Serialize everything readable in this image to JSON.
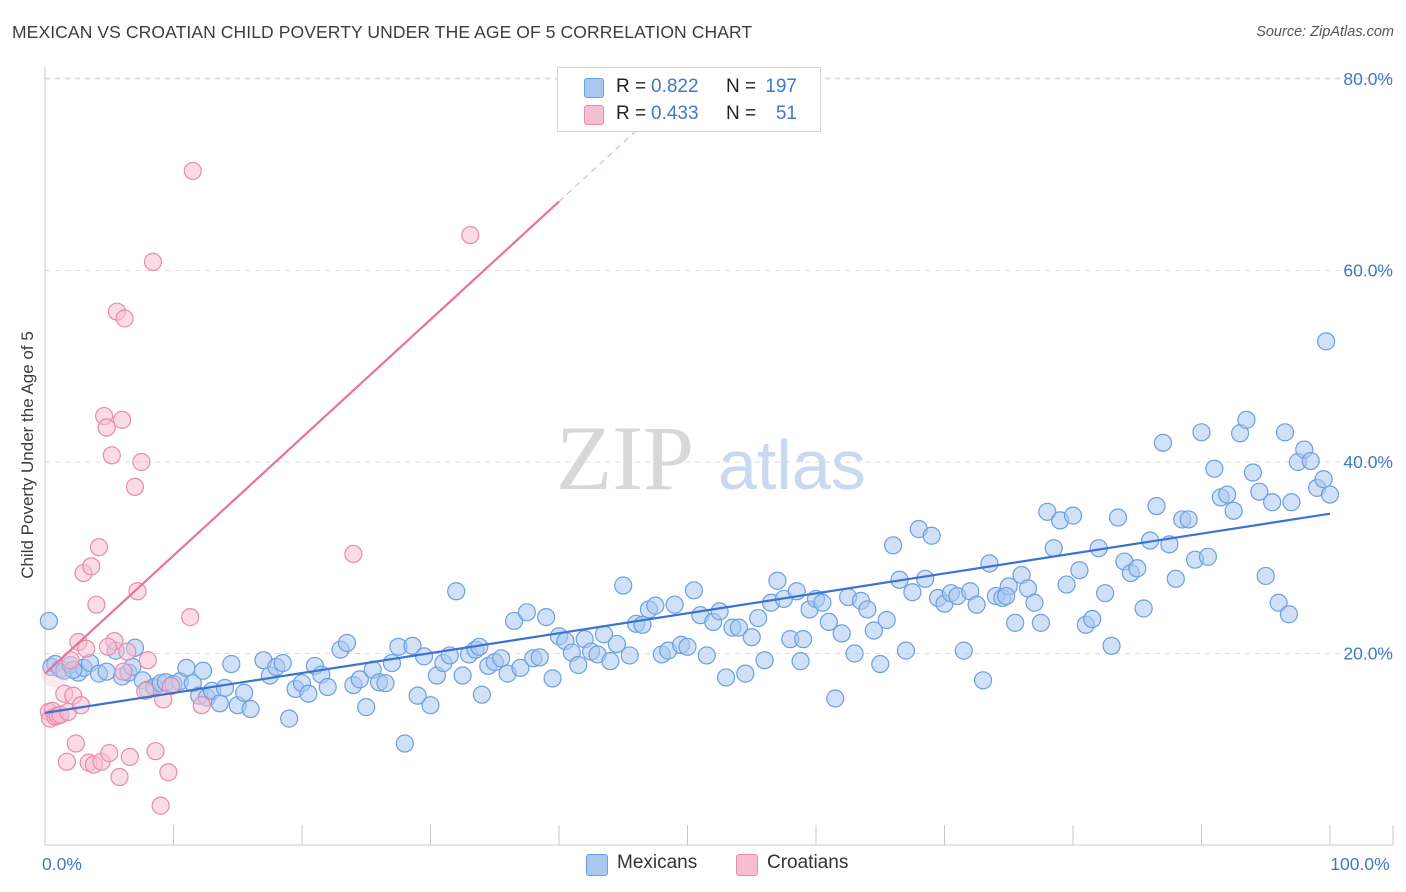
{
  "title": "MEXICAN VS CROATIAN CHILD POVERTY UNDER THE AGE OF 5 CORRELATION CHART",
  "source": "Source: ZipAtlas.com",
  "watermark": {
    "zip": "ZIP",
    "atlas": "atlas"
  },
  "colors": {
    "blue_fill": "#a9c8f0",
    "blue_stroke": "#6b9fe0",
    "blue_line": "#3a73d0",
    "pink_fill": "#f6bfd1",
    "pink_stroke": "#ea8aab",
    "pink_line": "#e8739a",
    "grid": "#dcdcdc",
    "axis": "#c8c8c8",
    "tick_text": "#3f79c9"
  },
  "legend": {
    "rows": [
      {
        "r_label": "R =",
        "r_value": "0.822",
        "n_label": "N =",
        "n_value": "197",
        "color": "#a9c8f0",
        "stroke": "#6b9fe0"
      },
      {
        "r_label": "R =",
        "r_value": "0.433",
        "n_label": "N =",
        "n_value": "51",
        "color": "#f6bfd1",
        "stroke": "#ea8aab"
      }
    ]
  },
  "bottom_legend": [
    {
      "label": "Mexicans",
      "color": "#a9c8f0",
      "stroke": "#6b9fe0"
    },
    {
      "label": "Croatians",
      "color": "#f6bfd1",
      "stroke": "#ea8aab"
    }
  ],
  "chart_data": {
    "type": "scatter",
    "title": "MEXICAN VS CROATIAN CHILD POVERTY UNDER THE AGE OF 5 CORRELATION CHART",
    "xlabel": "",
    "ylabel": "Child Poverty Under the Age of 5",
    "xlim": [
      0,
      100
    ],
    "ylim": [
      0,
      80
    ],
    "x_tick_labels": [
      {
        "value": 0,
        "label": "0.0%"
      },
      {
        "value": 100,
        "label": "100.0%"
      }
    ],
    "y_tick_labels": [
      {
        "value": 20,
        "label": "20.0%"
      },
      {
        "value": 40,
        "label": "40.0%"
      },
      {
        "value": 60,
        "label": "60.0%"
      },
      {
        "value": 80,
        "label": "80.0%"
      }
    ],
    "series": [
      {
        "name": "Mexicans",
        "trend": {
          "x": [
            0,
            100
          ],
          "y": [
            13.8,
            34.6
          ]
        },
        "points": [
          [
            0.3,
            23.4
          ],
          [
            0.5,
            18.6
          ],
          [
            0.8,
            18.9
          ],
          [
            1.2,
            18.4
          ],
          [
            1.5,
            18.2
          ],
          [
            2.0,
            18.8
          ],
          [
            2.6,
            18.0
          ],
          [
            3.0,
            18.5
          ],
          [
            3.5,
            19.0
          ],
          [
            4.2,
            17.9
          ],
          [
            4.8,
            18.1
          ],
          [
            5.5,
            20.3
          ],
          [
            6.0,
            17.6
          ],
          [
            6.5,
            18.0
          ],
          [
            7.0,
            20.6
          ],
          [
            7.6,
            17.2
          ],
          [
            8.0,
            16.2
          ],
          [
            8.5,
            16.5
          ],
          [
            9.0,
            16.9
          ],
          [
            9.4,
            17.0
          ],
          [
            10.0,
            16.8
          ],
          [
            10.5,
            17.1
          ],
          [
            11.0,
            18.5
          ],
          [
            11.5,
            16.9
          ],
          [
            12.0,
            15.6
          ],
          [
            12.6,
            15.4
          ],
          [
            13.0,
            16.1
          ],
          [
            13.6,
            14.8
          ],
          [
            14.0,
            16.4
          ],
          [
            14.5,
            18.9
          ],
          [
            15.0,
            14.6
          ],
          [
            15.5,
            15.9
          ],
          [
            16.0,
            14.2
          ],
          [
            17.0,
            19.3
          ],
          [
            17.5,
            17.7
          ],
          [
            18.0,
            18.6
          ],
          [
            18.5,
            19.0
          ],
          [
            19.0,
            13.2
          ],
          [
            19.5,
            16.3
          ],
          [
            20.0,
            16.9
          ],
          [
            20.5,
            15.8
          ],
          [
            21.0,
            18.7
          ],
          [
            21.5,
            17.8
          ],
          [
            22.0,
            16.5
          ],
          [
            23.0,
            20.4
          ],
          [
            23.5,
            21.1
          ],
          [
            24.0,
            16.7
          ],
          [
            24.5,
            17.3
          ],
          [
            25.0,
            14.4
          ],
          [
            25.5,
            18.3
          ],
          [
            26.0,
            17.0
          ],
          [
            26.5,
            16.9
          ],
          [
            27.0,
            19.0
          ],
          [
            27.5,
            20.7
          ],
          [
            28.0,
            10.6
          ],
          [
            28.6,
            20.8
          ],
          [
            29.0,
            15.6
          ],
          [
            29.5,
            19.7
          ],
          [
            30.0,
            14.6
          ],
          [
            30.5,
            17.7
          ],
          [
            31.0,
            19.0
          ],
          [
            31.5,
            19.8
          ],
          [
            32.0,
            26.5
          ],
          [
            32.5,
            17.7
          ],
          [
            33.0,
            19.9
          ],
          [
            33.5,
            20.4
          ],
          [
            34.0,
            15.7
          ],
          [
            34.5,
            18.7
          ],
          [
            35.0,
            19.1
          ],
          [
            35.5,
            19.5
          ],
          [
            36.0,
            17.9
          ],
          [
            36.5,
            23.4
          ],
          [
            37.0,
            18.5
          ],
          [
            37.5,
            24.3
          ],
          [
            38.0,
            19.5
          ],
          [
            38.5,
            19.6
          ],
          [
            39.0,
            23.8
          ],
          [
            39.5,
            17.4
          ],
          [
            40.0,
            21.8
          ],
          [
            40.5,
            21.3
          ],
          [
            41.0,
            20.1
          ],
          [
            41.5,
            18.8
          ],
          [
            42.0,
            21.5
          ],
          [
            42.5,
            20.2
          ],
          [
            43.0,
            19.9
          ],
          [
            43.5,
            22.0
          ],
          [
            44.0,
            19.2
          ],
          [
            44.5,
            21.0
          ],
          [
            45.0,
            27.1
          ],
          [
            45.5,
            19.8
          ],
          [
            46.0,
            23.1
          ],
          [
            46.5,
            23.0
          ],
          [
            47.0,
            24.6
          ],
          [
            47.5,
            25.0
          ],
          [
            48.0,
            19.9
          ],
          [
            48.5,
            20.3
          ],
          [
            49.0,
            25.1
          ],
          [
            49.5,
            20.9
          ],
          [
            50.0,
            20.7
          ],
          [
            50.5,
            26.6
          ],
          [
            51.0,
            24.0
          ],
          [
            51.5,
            19.8
          ],
          [
            52.0,
            23.3
          ],
          [
            52.5,
            24.4
          ],
          [
            53.0,
            17.5
          ],
          [
            53.5,
            22.7
          ],
          [
            54.0,
            22.7
          ],
          [
            54.5,
            17.9
          ],
          [
            55.0,
            21.7
          ],
          [
            55.5,
            23.7
          ],
          [
            56.0,
            19.3
          ],
          [
            56.5,
            25.3
          ],
          [
            57.0,
            27.6
          ],
          [
            57.5,
            25.7
          ],
          [
            58.0,
            21.5
          ],
          [
            58.5,
            26.5
          ],
          [
            59.0,
            21.5
          ],
          [
            59.5,
            24.6
          ],
          [
            60.0,
            25.7
          ],
          [
            60.5,
            25.3
          ],
          [
            61.0,
            23.3
          ],
          [
            61.5,
            15.3
          ],
          [
            62.0,
            22.1
          ],
          [
            62.5,
            25.9
          ],
          [
            63.0,
            20.0
          ],
          [
            63.5,
            25.5
          ],
          [
            64.0,
            24.6
          ],
          [
            64.5,
            22.4
          ],
          [
            65.0,
            18.9
          ],
          [
            65.5,
            23.5
          ],
          [
            66.0,
            31.3
          ],
          [
            66.5,
            27.7
          ],
          [
            67.0,
            20.3
          ],
          [
            67.5,
            26.4
          ],
          [
            68.0,
            33.0
          ],
          [
            68.5,
            27.8
          ],
          [
            69.0,
            32.3
          ],
          [
            69.5,
            25.8
          ],
          [
            70.0,
            25.2
          ],
          [
            70.5,
            26.3
          ],
          [
            71.0,
            26.0
          ],
          [
            71.5,
            20.3
          ],
          [
            72.0,
            26.5
          ],
          [
            72.5,
            25.1
          ],
          [
            73.0,
            17.2
          ],
          [
            73.5,
            29.4
          ],
          [
            74.0,
            26.0
          ],
          [
            74.5,
            25.8
          ],
          [
            75.0,
            27.0
          ],
          [
            75.5,
            23.2
          ],
          [
            76.0,
            28.2
          ],
          [
            76.5,
            26.8
          ],
          [
            77.0,
            25.3
          ],
          [
            77.5,
            23.2
          ],
          [
            78.0,
            34.8
          ],
          [
            78.5,
            31.0
          ],
          [
            79.0,
            33.9
          ],
          [
            79.5,
            27.2
          ],
          [
            80.0,
            34.4
          ],
          [
            80.5,
            28.7
          ],
          [
            81.0,
            23.0
          ],
          [
            81.5,
            23.6
          ],
          [
            82.0,
            31.0
          ],
          [
            82.5,
            26.3
          ],
          [
            83.0,
            20.8
          ],
          [
            83.5,
            34.2
          ],
          [
            84.0,
            29.6
          ],
          [
            84.5,
            28.4
          ],
          [
            85.0,
            28.9
          ],
          [
            85.5,
            24.7
          ],
          [
            86.0,
            31.8
          ],
          [
            86.5,
            35.4
          ],
          [
            87.0,
            42.0
          ],
          [
            87.5,
            31.4
          ],
          [
            88.0,
            27.8
          ],
          [
            88.5,
            34.0
          ],
          [
            89.0,
            34.0
          ],
          [
            89.5,
            29.8
          ],
          [
            90.0,
            43.1
          ],
          [
            90.5,
            30.1
          ],
          [
            91.0,
            39.3
          ],
          [
            91.5,
            36.3
          ],
          [
            92.0,
            36.6
          ],
          [
            92.5,
            34.9
          ],
          [
            93.0,
            43.0
          ],
          [
            93.5,
            44.4
          ],
          [
            94.0,
            38.9
          ],
          [
            94.5,
            36.9
          ],
          [
            95.0,
            28.1
          ],
          [
            95.5,
            35.8
          ],
          [
            96.0,
            25.3
          ],
          [
            96.5,
            43.1
          ],
          [
            97.0,
            35.8
          ],
          [
            97.5,
            40.0
          ],
          [
            98.0,
            41.3
          ],
          [
            98.5,
            40.1
          ],
          [
            99.0,
            37.3
          ],
          [
            99.5,
            38.2
          ],
          [
            100.0,
            36.6
          ],
          [
            99.7,
            52.6
          ],
          [
            2.2,
            18.3
          ],
          [
            6.8,
            18.6
          ],
          [
            12.3,
            18.2
          ],
          [
            33.8,
            20.7
          ],
          [
            58.8,
            19.2
          ],
          [
            74.8,
            26.0
          ],
          [
            96.8,
            24.1
          ]
        ]
      },
      {
        "name": "Croatians",
        "trend": {
          "x": [
            0,
            40
          ],
          "y": [
            17.9,
            67.2
          ]
        },
        "trend_dashed": {
          "x": [
            40,
            46
          ],
          "y": [
            67.2,
            74.6
          ]
        },
        "points": [
          [
            0.3,
            13.9
          ],
          [
            0.4,
            13.2
          ],
          [
            0.6,
            14.0
          ],
          [
            0.8,
            13.4
          ],
          [
            1.0,
            13.5
          ],
          [
            1.2,
            13.6
          ],
          [
            1.5,
            15.8
          ],
          [
            1.8,
            13.9
          ],
          [
            2.0,
            19.3
          ],
          [
            2.2,
            15.6
          ],
          [
            2.4,
            10.6
          ],
          [
            2.6,
            21.2
          ],
          [
            2.8,
            14.6
          ],
          [
            3.0,
            28.4
          ],
          [
            3.2,
            20.5
          ],
          [
            3.4,
            8.6
          ],
          [
            3.6,
            29.1
          ],
          [
            3.8,
            8.4
          ],
          [
            4.0,
            25.1
          ],
          [
            4.2,
            31.1
          ],
          [
            4.4,
            8.7
          ],
          [
            4.6,
            44.8
          ],
          [
            4.8,
            43.6
          ],
          [
            5.0,
            9.6
          ],
          [
            5.2,
            40.7
          ],
          [
            5.4,
            21.3
          ],
          [
            5.6,
            55.7
          ],
          [
            5.8,
            7.1
          ],
          [
            6.0,
            44.4
          ],
          [
            6.2,
            55.0
          ],
          [
            6.4,
            20.2
          ],
          [
            6.6,
            9.2
          ],
          [
            7.0,
            37.4
          ],
          [
            7.2,
            26.5
          ],
          [
            7.5,
            40.0
          ],
          [
            7.8,
            16.1
          ],
          [
            8.0,
            19.3
          ],
          [
            8.4,
            60.9
          ],
          [
            8.6,
            9.8
          ],
          [
            9.0,
            4.1
          ],
          [
            9.6,
            7.6
          ],
          [
            9.8,
            16.6
          ],
          [
            11.3,
            23.8
          ],
          [
            11.5,
            70.4
          ],
          [
            12.2,
            14.6
          ],
          [
            24.0,
            30.4
          ],
          [
            33.1,
            63.7
          ],
          [
            1.7,
            8.7
          ],
          [
            4.9,
            20.7
          ],
          [
            6.1,
            18.1
          ],
          [
            9.2,
            15.2
          ]
        ]
      }
    ]
  }
}
